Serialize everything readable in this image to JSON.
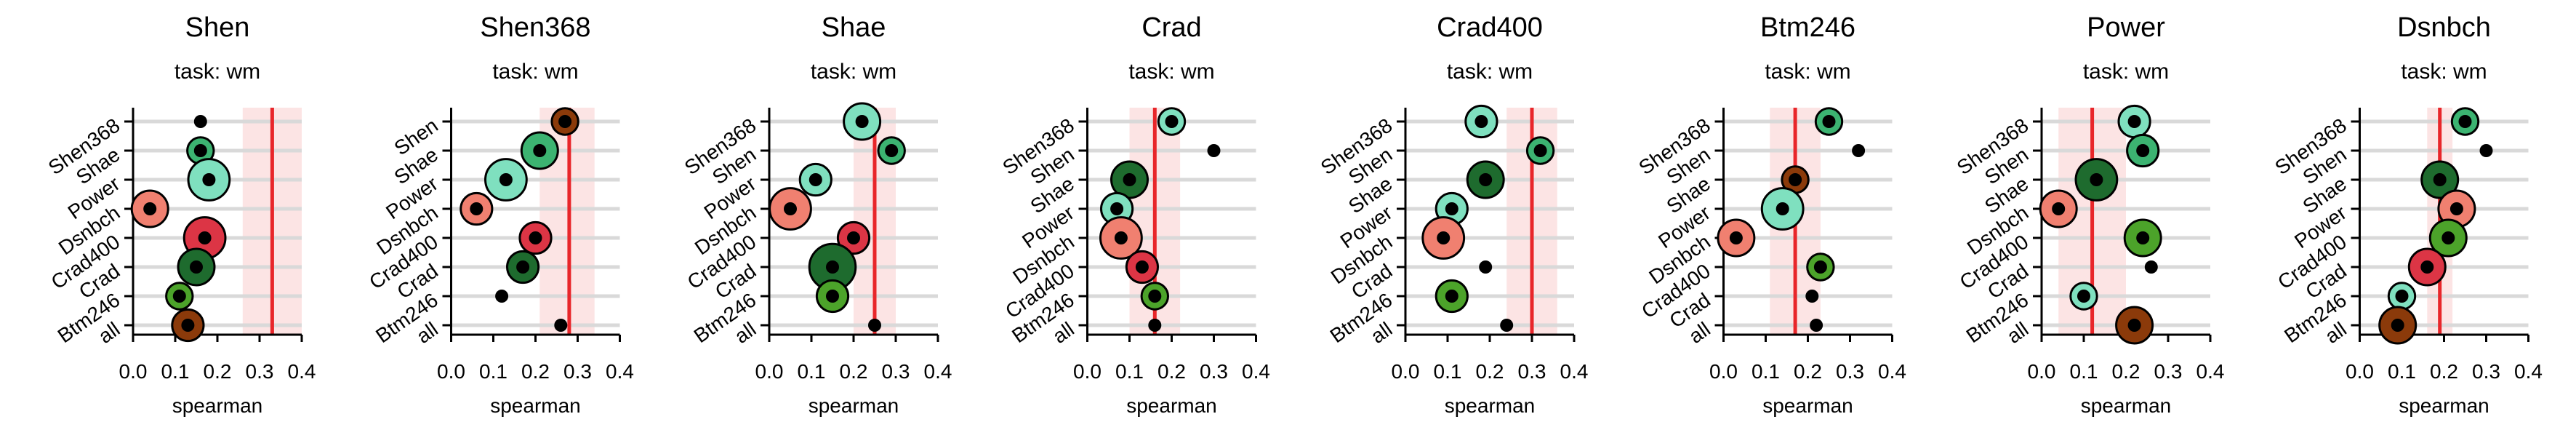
{
  "chart_data": [
    {
      "type": "scatter",
      "title": "Shen",
      "subtitle": "task: wm",
      "xlabel": "spearman",
      "xlim": [
        0,
        0.4
      ],
      "xticks": [
        "0.0",
        "0.1",
        "0.2",
        "0.3",
        "0.4"
      ],
      "categories": [
        "Shen368",
        "Shae",
        "Power",
        "Dsnbch",
        "Crad400",
        "Crad",
        "Btm246",
        "all"
      ],
      "reference": {
        "value": 0.33,
        "band": [
          0.26,
          0.4
        ]
      },
      "points": [
        {
          "y": "Shen368",
          "x": 0.16,
          "color": "#000000",
          "size": 0
        },
        {
          "y": "Shae",
          "x": 0.16,
          "color": "#3CB371",
          "size": 3
        },
        {
          "y": "Power",
          "x": 0.18,
          "color": "#7FE0BF",
          "size": 6
        },
        {
          "y": "Dsnbch",
          "x": 0.04,
          "color": "#F08070",
          "size": 5
        },
        {
          "y": "Crad400",
          "x": 0.17,
          "color": "#DC3545",
          "size": 6
        },
        {
          "y": "Crad",
          "x": 0.15,
          "color": "#1E6B2E",
          "size": 5
        },
        {
          "y": "Btm246",
          "x": 0.11,
          "color": "#4CA32A",
          "size": 3
        },
        {
          "y": "all",
          "x": 0.13,
          "color": "#8B3A0A",
          "size": 4
        }
      ]
    },
    {
      "type": "scatter",
      "title": "Shen368",
      "subtitle": "task: wm",
      "xlabel": "spearman",
      "xlim": [
        0,
        0.4
      ],
      "xticks": [
        "0.0",
        "0.1",
        "0.2",
        "0.3",
        "0.4"
      ],
      "categories": [
        "Shen",
        "Shae",
        "Power",
        "Dsnbch",
        "Crad400",
        "Crad",
        "Btm246",
        "all"
      ],
      "reference": {
        "value": 0.28,
        "band": [
          0.21,
          0.34
        ]
      },
      "points": [
        {
          "y": "Shen",
          "x": 0.27,
          "color": "#8B3A0A",
          "size": 3
        },
        {
          "y": "Shae",
          "x": 0.21,
          "color": "#3CB371",
          "size": 5
        },
        {
          "y": "Power",
          "x": 0.13,
          "color": "#7FE0BF",
          "size": 6
        },
        {
          "y": "Dsnbch",
          "x": 0.06,
          "color": "#F08070",
          "size": 4
        },
        {
          "y": "Crad400",
          "x": 0.2,
          "color": "#DC3545",
          "size": 4
        },
        {
          "y": "Crad",
          "x": 0.17,
          "color": "#1E6B2E",
          "size": 4
        },
        {
          "y": "Btm246",
          "x": 0.12,
          "color": "#000000",
          "size": 0
        },
        {
          "y": "all",
          "x": 0.26,
          "color": "#000000",
          "size": 0
        }
      ]
    },
    {
      "type": "scatter",
      "title": "Shae",
      "subtitle": "task: wm",
      "xlabel": "spearman",
      "xlim": [
        0,
        0.4
      ],
      "xticks": [
        "0.0",
        "0.1",
        "0.2",
        "0.3",
        "0.4"
      ],
      "categories": [
        "Shen368",
        "Shen",
        "Power",
        "Dsnbch",
        "Crad400",
        "Crad",
        "Btm246",
        "all"
      ],
      "reference": {
        "value": 0.25,
        "band": [
          0.2,
          0.3
        ]
      },
      "points": [
        {
          "y": "Shen368",
          "x": 0.22,
          "color": "#7FE0BF",
          "size": 5
        },
        {
          "y": "Shen",
          "x": 0.29,
          "color": "#3CB371",
          "size": 3
        },
        {
          "y": "Power",
          "x": 0.11,
          "color": "#7FE0BF",
          "size": 4
        },
        {
          "y": "Dsnbch",
          "x": 0.05,
          "color": "#F08070",
          "size": 6
        },
        {
          "y": "Crad400",
          "x": 0.2,
          "color": "#DC3545",
          "size": 4
        },
        {
          "y": "Crad",
          "x": 0.15,
          "color": "#1E6B2E",
          "size": 7
        },
        {
          "y": "Btm246",
          "x": 0.15,
          "color": "#4CA32A",
          "size": 4
        },
        {
          "y": "all",
          "x": 0.25,
          "color": "#000000",
          "size": 0
        }
      ]
    },
    {
      "type": "scatter",
      "title": "Crad",
      "subtitle": "task: wm",
      "xlabel": "spearman",
      "xlim": [
        0,
        0.4
      ],
      "xticks": [
        "0.0",
        "0.1",
        "0.2",
        "0.3",
        "0.4"
      ],
      "categories": [
        "Shen368",
        "Shen",
        "Shae",
        "Power",
        "Dsnbch",
        "Crad400",
        "Btm246",
        "all"
      ],
      "reference": {
        "value": 0.16,
        "band": [
          0.1,
          0.22
        ]
      },
      "points": [
        {
          "y": "Shen368",
          "x": 0.2,
          "color": "#7FE0BF",
          "size": 3
        },
        {
          "y": "Shen",
          "x": 0.3,
          "color": "#000000",
          "size": 0
        },
        {
          "y": "Shae",
          "x": 0.1,
          "color": "#1E6B2E",
          "size": 5
        },
        {
          "y": "Power",
          "x": 0.07,
          "color": "#7FE0BF",
          "size": 4
        },
        {
          "y": "Dsnbch",
          "x": 0.08,
          "color": "#F08070",
          "size": 6
        },
        {
          "y": "Crad400",
          "x": 0.13,
          "color": "#DC3545",
          "size": 4
        },
        {
          "y": "Btm246",
          "x": 0.16,
          "color": "#4CA32A",
          "size": 3
        },
        {
          "y": "all",
          "x": 0.16,
          "color": "#000000",
          "size": 0
        }
      ]
    },
    {
      "type": "scatter",
      "title": "Crad400",
      "subtitle": "task: wm",
      "xlabel": "spearman",
      "xlim": [
        0,
        0.4
      ],
      "xticks": [
        "0.0",
        "0.1",
        "0.2",
        "0.3",
        "0.4"
      ],
      "categories": [
        "Shen368",
        "Shen",
        "Shae",
        "Power",
        "Dsnbch",
        "Crad",
        "Btm246",
        "all"
      ],
      "reference": {
        "value": 0.3,
        "band": [
          0.24,
          0.36
        ]
      },
      "points": [
        {
          "y": "Shen368",
          "x": 0.18,
          "color": "#7FE0BF",
          "size": 4
        },
        {
          "y": "Shen",
          "x": 0.32,
          "color": "#3CB371",
          "size": 3
        },
        {
          "y": "Shae",
          "x": 0.19,
          "color": "#1E6B2E",
          "size": 5
        },
        {
          "y": "Power",
          "x": 0.11,
          "color": "#7FE0BF",
          "size": 4
        },
        {
          "y": "Dsnbch",
          "x": 0.09,
          "color": "#F08070",
          "size": 6
        },
        {
          "y": "Crad",
          "x": 0.19,
          "color": "#000000",
          "size": 0
        },
        {
          "y": "Btm246",
          "x": 0.11,
          "color": "#4CA32A",
          "size": 4
        },
        {
          "y": "all",
          "x": 0.24,
          "color": "#000000",
          "size": 0
        }
      ]
    },
    {
      "type": "scatter",
      "title": "Btm246",
      "subtitle": "task: wm",
      "xlabel": "spearman",
      "xlim": [
        0,
        0.4
      ],
      "xticks": [
        "0.0",
        "0.1",
        "0.2",
        "0.3",
        "0.4"
      ],
      "categories": [
        "Shen368",
        "Shen",
        "Shae",
        "Power",
        "Dsnbch",
        "Crad400",
        "Crad",
        "all"
      ],
      "reference": {
        "value": 0.17,
        "band": [
          0.11,
          0.23
        ]
      },
      "points": [
        {
          "y": "Shen368",
          "x": 0.25,
          "color": "#3CB371",
          "size": 3
        },
        {
          "y": "Shen",
          "x": 0.32,
          "color": "#000000",
          "size": 0
        },
        {
          "y": "Shae",
          "x": 0.17,
          "color": "#8B3A0A",
          "size": 3
        },
        {
          "y": "Power",
          "x": 0.14,
          "color": "#7FE0BF",
          "size": 6
        },
        {
          "y": "Dsnbch",
          "x": 0.03,
          "color": "#F08070",
          "size": 5
        },
        {
          "y": "Crad400",
          "x": 0.23,
          "color": "#4CA32A",
          "size": 3
        },
        {
          "y": "Crad",
          "x": 0.21,
          "color": "#000000",
          "size": 0
        },
        {
          "y": "all",
          "x": 0.22,
          "color": "#000000",
          "size": 0
        }
      ]
    },
    {
      "type": "scatter",
      "title": "Power",
      "subtitle": "task: wm",
      "xlabel": "spearman",
      "xlim": [
        0,
        0.4
      ],
      "xticks": [
        "0.0",
        "0.1",
        "0.2",
        "0.3",
        "0.4"
      ],
      "categories": [
        "Shen368",
        "Shen",
        "Shae",
        "Dsnbch",
        "Crad400",
        "Crad",
        "Btm246",
        "all"
      ],
      "reference": {
        "value": 0.12,
        "band": [
          0.04,
          0.2
        ]
      },
      "points": [
        {
          "y": "Shen368",
          "x": 0.22,
          "color": "#7FE0BF",
          "size": 4
        },
        {
          "y": "Shen",
          "x": 0.24,
          "color": "#3CB371",
          "size": 4
        },
        {
          "y": "Shae",
          "x": 0.13,
          "color": "#1E6B2E",
          "size": 6
        },
        {
          "y": "Dsnbch",
          "x": 0.04,
          "color": "#F08070",
          "size": 5
        },
        {
          "y": "Crad400",
          "x": 0.24,
          "color": "#4CA32A",
          "size": 5
        },
        {
          "y": "Crad",
          "x": 0.26,
          "color": "#000000",
          "size": 0
        },
        {
          "y": "Btm246",
          "x": 0.1,
          "color": "#7FE0BF",
          "size": 3
        },
        {
          "y": "all",
          "x": 0.22,
          "color": "#8B3A0A",
          "size": 5
        }
      ]
    },
    {
      "type": "scatter",
      "title": "Dsnbch",
      "subtitle": "task: wm",
      "xlabel": "spearman",
      "xlim": [
        0,
        0.4
      ],
      "xticks": [
        "0.0",
        "0.1",
        "0.2",
        "0.3",
        "0.4"
      ],
      "categories": [
        "Shen368",
        "Shen",
        "Shae",
        "Power",
        "Crad400",
        "Crad",
        "Btm246",
        "all"
      ],
      "reference": {
        "value": 0.19,
        "band": [
          0.16,
          0.22
        ]
      },
      "points": [
        {
          "y": "Shen368",
          "x": 0.25,
          "color": "#3CB371",
          "size": 3
        },
        {
          "y": "Shen",
          "x": 0.3,
          "color": "#000000",
          "size": 0
        },
        {
          "y": "Shae",
          "x": 0.19,
          "color": "#1E6B2E",
          "size": 5
        },
        {
          "y": "Power",
          "x": 0.23,
          "color": "#F08070",
          "size": 5
        },
        {
          "y": "Crad400",
          "x": 0.21,
          "color": "#4CA32A",
          "size": 5
        },
        {
          "y": "Crad",
          "x": 0.16,
          "color": "#DC3545",
          "size": 5
        },
        {
          "y": "Btm246",
          "x": 0.1,
          "color": "#7FE0BF",
          "size": 3
        },
        {
          "y": "all",
          "x": 0.09,
          "color": "#8B3A0A",
          "size": 5
        }
      ]
    }
  ]
}
